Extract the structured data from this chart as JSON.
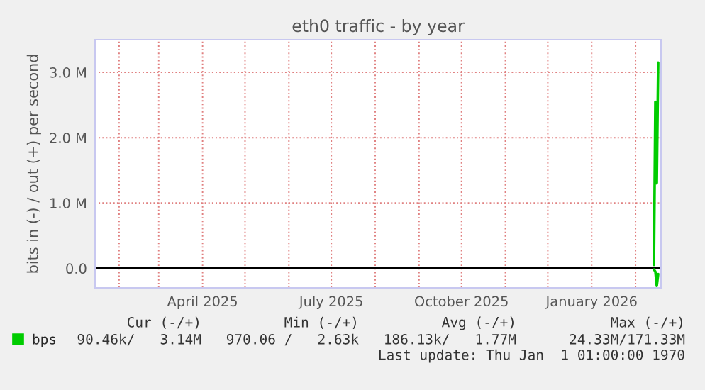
{
  "chart_data": {
    "type": "line",
    "title": "eth0 traffic - by year",
    "ylabel": "bits in (-) / out (+) per second",
    "series": [
      {
        "name": "bps",
        "color": "#00cc00",
        "x": [
          "2026-02-14",
          "2026-02-15",
          "2026-02-16",
          "2026-02-17"
        ],
        "values": [
          50000,
          2550000,
          1300000,
          3150000
        ]
      },
      {
        "color": "#00cc00",
        "x": [
          "2026-02-14",
          "2026-02-15",
          "2026-02-16",
          "2026-02-17"
        ],
        "values": [
          -20000,
          -50000,
          -270000,
          -90000
        ]
      }
    ],
    "xlim": [
      "2025-01-15",
      "2026-02-19"
    ],
    "xticks": [
      {
        "value": "2025-02-01",
        "label": null
      },
      {
        "value": "2025-03-01",
        "label": null
      },
      {
        "value": "2025-04-01",
        "label": "April 2025"
      },
      {
        "value": "2025-05-01",
        "label": null
      },
      {
        "value": "2025-06-01",
        "label": null
      },
      {
        "value": "2025-07-01",
        "label": "July 2025"
      },
      {
        "value": "2025-08-01",
        "label": null
      },
      {
        "value": "2025-09-01",
        "label": null
      },
      {
        "value": "2025-10-01",
        "label": "October 2025"
      },
      {
        "value": "2025-11-01",
        "label": null
      },
      {
        "value": "2025-12-01",
        "label": null
      },
      {
        "value": "2026-01-01",
        "label": "January 2026"
      },
      {
        "value": "2026-02-01",
        "label": null
      }
    ],
    "ylim": [
      -300000,
      3500000
    ],
    "yticks": [
      {
        "value": 0,
        "label": "0.0"
      },
      {
        "value": 1000000,
        "label": "1.0 M"
      },
      {
        "value": 2000000,
        "label": "2.0 M"
      },
      {
        "value": 3000000,
        "label": "3.0 M"
      }
    ],
    "ref_lines": [
      {
        "axis": "y",
        "value": 0,
        "color": "#000000"
      }
    ],
    "grid": true,
    "legend": "bottom left",
    "marker": "none",
    "line_style": "solid",
    "annotations": [
      "Cur (-/+)",
      "Min (-/+)",
      "Avg (-/+)",
      "Max (-/+)",
      "90.46k/   3.14M",
      "970.06 /   2.63k",
      "186.13k/   1.77M",
      "24.33M/171.33M",
      "Last update: Thu Jan  1 01:00:00 1970"
    ]
  }
}
